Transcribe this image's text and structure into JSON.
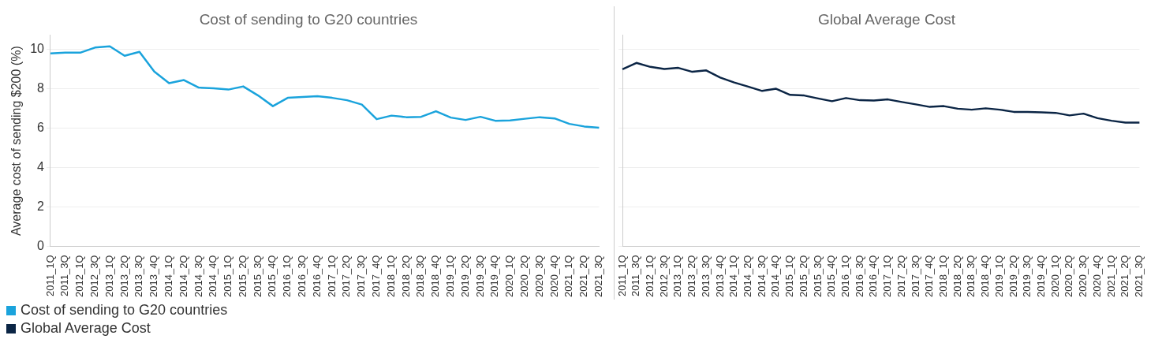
{
  "chart_data": [
    {
      "type": "line",
      "title": "Cost of sending to G20 countries",
      "ylabel": "Average cost of sending $200 (%)",
      "categories": [
        "2011_1Q",
        "2011_3Q",
        "2012_1Q",
        "2012_3Q",
        "2013_1Q",
        "2013_2Q",
        "2013_3Q",
        "2013_4Q",
        "2014_1Q",
        "2014_2Q",
        "2014_3Q",
        "2014_4Q",
        "2015_1Q",
        "2015_2Q",
        "2015_3Q",
        "2015_4Q",
        "2016_1Q",
        "2016_3Q",
        "2016_4Q",
        "2017_1Q",
        "2017_2Q",
        "2017_3Q",
        "2017_4Q",
        "2018_1Q",
        "2018_2Q",
        "2018_3Q",
        "2018_4Q",
        "2019_1Q",
        "2019_2Q",
        "2019_3Q",
        "2019_4Q",
        "2020_1Q",
        "2020_2Q",
        "2020_3Q",
        "2020_4Q",
        "2021_1Q",
        "2021_2Q",
        "2021_3Q"
      ],
      "series": [
        {
          "name": "Cost of sending to G20 countries",
          "color": "#1aa3dc",
          "values": [
            9.78,
            9.82,
            9.82,
            10.08,
            10.14,
            9.66,
            9.86,
            8.86,
            8.27,
            8.43,
            8.05,
            8.01,
            7.95,
            8.11,
            7.65,
            7.11,
            7.53,
            7.57,
            7.61,
            7.53,
            7.41,
            7.19,
            6.45,
            6.63,
            6.55,
            6.57,
            6.85,
            6.53,
            6.41,
            6.57,
            6.37,
            6.39,
            6.47,
            6.55,
            6.49,
            6.21,
            6.08,
            6.02
          ]
        }
      ],
      "ylim": [
        0,
        10.7
      ],
      "yticks": [
        0,
        2,
        4,
        6,
        8,
        10
      ],
      "grid": "y",
      "legend": "bottom left",
      "marker": "none"
    },
    {
      "type": "line",
      "title": "Global Average Cost",
      "categories": [
        "2011_1Q",
        "2011_3Q",
        "2012_1Q",
        "2012_3Q",
        "2013_1Q",
        "2013_2Q",
        "2013_3Q",
        "2013_4Q",
        "2014_1Q",
        "2014_2Q",
        "2014_3Q",
        "2014_4Q",
        "2015_1Q",
        "2015_2Q",
        "2015_3Q",
        "2015_4Q",
        "2016_1Q",
        "2016_3Q",
        "2016_4Q",
        "2017_1Q",
        "2017_2Q",
        "2017_3Q",
        "2017_4Q",
        "2018_1Q",
        "2018_2Q",
        "2018_3Q",
        "2018_4Q",
        "2019_1Q",
        "2019_2Q",
        "2019_3Q",
        "2019_4Q",
        "2020_1Q",
        "2020_2Q",
        "2020_3Q",
        "2020_4Q",
        "2021_1Q",
        "2021_2Q",
        "2021_3Q"
      ],
      "series": [
        {
          "name": "Global Average Cost",
          "color": "#0b2545",
          "values": [
            8.98,
            9.3,
            9.1,
            8.99,
            9.05,
            8.85,
            8.92,
            8.56,
            8.31,
            8.1,
            7.88,
            7.99,
            7.68,
            7.65,
            7.5,
            7.36,
            7.52,
            7.41,
            7.39,
            7.45,
            7.32,
            7.2,
            7.07,
            7.11,
            6.98,
            6.93,
            7.0,
            6.93,
            6.82,
            6.82,
            6.8,
            6.77,
            6.64,
            6.73,
            6.5,
            6.37,
            6.28,
            6.28
          ]
        }
      ],
      "ylim": [
        0,
        10.7
      ],
      "yticks": [
        0,
        2,
        4,
        6,
        8,
        10
      ],
      "grid": "y",
      "legend": "bottom left",
      "marker": "none",
      "tick_labels": "x"
    }
  ]
}
